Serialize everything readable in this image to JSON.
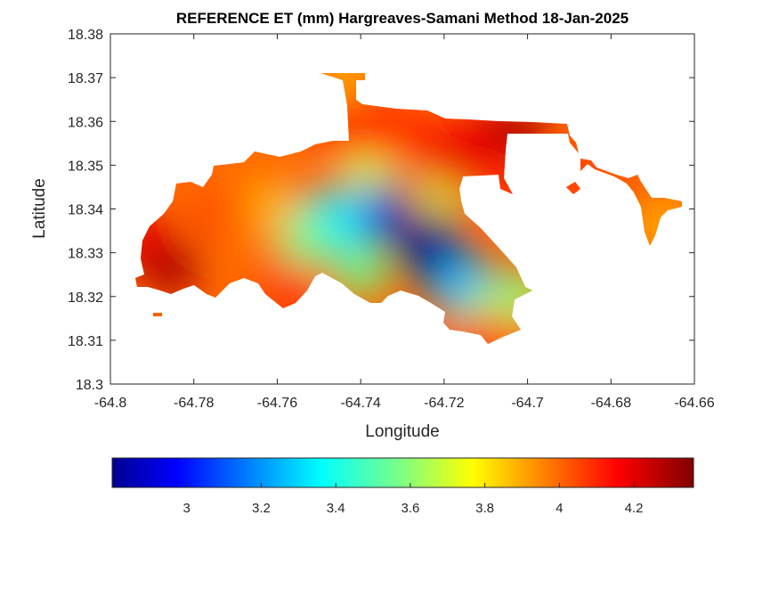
{
  "chart_data": {
    "type": "heatmap",
    "title": "REFERENCE ET (mm) Hargreaves-Samani Method  18-Jan-2025",
    "xlabel": "Longitude",
    "ylabel": "Latitude",
    "xlim": [
      -64.8,
      -64.66
    ],
    "ylim": [
      18.3,
      18.38
    ],
    "x_ticks": [
      "-64.8",
      "-64.78",
      "-64.76",
      "-64.74",
      "-64.72",
      "-64.7",
      "-64.68",
      "-64.66"
    ],
    "y_ticks": [
      "18.3",
      "18.31",
      "18.32",
      "18.33",
      "18.34",
      "18.35",
      "18.36",
      "18.37",
      "18.38"
    ],
    "colorbar": {
      "range": [
        2.8,
        4.36
      ],
      "ticks": [
        "3",
        "3.2",
        "3.4",
        "3.6",
        "3.8",
        "4",
        "4.2"
      ],
      "colormap": "jet"
    },
    "grid": false,
    "fields": [
      {
        "lon": -64.723,
        "lat": 18.331,
        "et": 2.82
      },
      {
        "lon": -64.737,
        "lat": 18.34,
        "et": 2.95
      },
      {
        "lon": -64.747,
        "lat": 18.337,
        "et": 3.35
      },
      {
        "lon": -64.715,
        "lat": 18.322,
        "et": 3.25
      },
      {
        "lon": -64.753,
        "lat": 18.333,
        "et": 3.55
      },
      {
        "lon": -64.74,
        "lat": 18.326,
        "et": 3.55
      },
      {
        "lon": -64.738,
        "lat": 18.35,
        "et": 3.7
      },
      {
        "lon": -64.762,
        "lat": 18.34,
        "et": 3.85
      },
      {
        "lon": -64.766,
        "lat": 18.337,
        "et": 3.95
      },
      {
        "lon": -64.72,
        "lat": 18.345,
        "et": 3.7
      },
      {
        "lon": -64.71,
        "lat": 18.317,
        "et": 3.6
      },
      {
        "lon": -64.775,
        "lat": 18.338,
        "et": 4.05
      },
      {
        "lon": -64.79,
        "lat": 18.33,
        "et": 4.33
      },
      {
        "lon": -64.785,
        "lat": 18.326,
        "et": 4.3
      },
      {
        "lon": -64.793,
        "lat": 18.334,
        "et": 4.2
      },
      {
        "lon": -64.76,
        "lat": 18.323,
        "et": 4.05
      },
      {
        "lon": -64.755,
        "lat": 18.32,
        "et": 4.1
      },
      {
        "lon": -64.725,
        "lat": 18.355,
        "et": 4.15
      },
      {
        "lon": -64.735,
        "lat": 18.357,
        "et": 4.1
      },
      {
        "lon": -64.745,
        "lat": 18.358,
        "et": 4.15
      },
      {
        "lon": -64.74,
        "lat": 18.366,
        "et": 4.15
      },
      {
        "lon": -64.744,
        "lat": 18.37,
        "et": 3.9
      },
      {
        "lon": -64.71,
        "lat": 18.357,
        "et": 4.2
      },
      {
        "lon": -64.702,
        "lat": 18.358,
        "et": 4.3
      },
      {
        "lon": -64.718,
        "lat": 18.35,
        "et": 4.2
      },
      {
        "lon": -64.708,
        "lat": 18.345,
        "et": 4.15
      },
      {
        "lon": -64.707,
        "lat": 18.312,
        "et": 4.0
      },
      {
        "lon": -64.713,
        "lat": 18.308,
        "et": 4.1
      },
      {
        "lon": -64.701,
        "lat": 18.32,
        "et": 3.6
      },
      {
        "lon": -64.669,
        "lat": 18.338,
        "et": 3.85
      },
      {
        "lon": -64.672,
        "lat": 18.343,
        "et": 4.0
      },
      {
        "lon": -64.681,
        "lat": 18.346,
        "et": 4.05
      },
      {
        "lon": -64.692,
        "lat": 18.348,
        "et": 4.1
      }
    ]
  }
}
